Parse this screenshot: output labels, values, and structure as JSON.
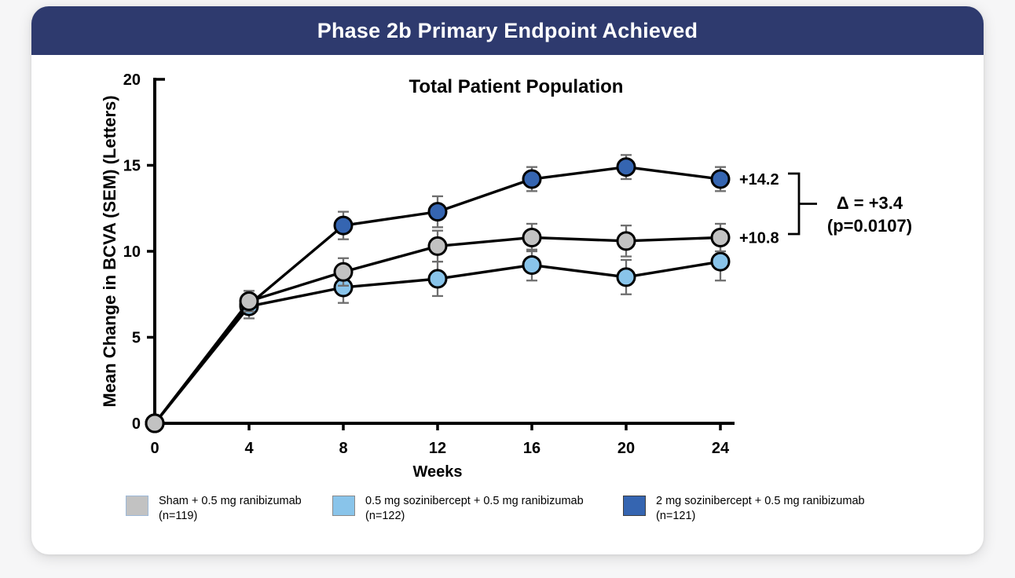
{
  "header": {
    "title": "Phase 2b Primary Endpoint Achieved",
    "bg_color": "#2e3a6e",
    "text_color": "#ffffff"
  },
  "chart_data": {
    "type": "line",
    "title": "Total Patient Population",
    "xlabel": "Weeks",
    "ylabel": "Mean Change in BCVA (SEM) (Letters)",
    "x": [
      0,
      4,
      8,
      12,
      16,
      20,
      24
    ],
    "xlim": [
      0,
      24.6
    ],
    "ylim": [
      0,
      20
    ],
    "yticks": [
      0,
      5,
      10,
      15,
      20
    ],
    "grid": false,
    "legend_position": "bottom",
    "axis_color": "#000000",
    "error_bar_color": "#6e6e6e",
    "series": [
      {
        "name": "Sham + 0.5 mg ranibizumab",
        "n": "(n=119)",
        "color": "#c2c2c2",
        "swatch_border": "#9db9d8",
        "values": [
          0,
          7.1,
          8.8,
          10.3,
          10.8,
          10.6,
          10.8
        ],
        "sem": [
          0,
          0.6,
          0.8,
          0.9,
          0.8,
          0.9,
          0.8
        ],
        "end_label": "+10.8"
      },
      {
        "name": "0.5 mg sozinibercept + 0.5 mg ranibizumab",
        "n": "(n=122)",
        "color": "#89c4ea",
        "swatch_border": "#8a8a8a",
        "values": [
          0,
          6.8,
          7.9,
          8.4,
          9.2,
          8.5,
          9.4
        ],
        "sem": [
          0,
          0.7,
          0.9,
          1.0,
          0.9,
          1.0,
          1.1
        ]
      },
      {
        "name": "2 mg sozinibercept + 0.5 mg ranibizumab",
        "n": "(n=121)",
        "color": "#3565b1",
        "swatch_border": "#3f3f3f",
        "values": [
          0,
          6.9,
          11.5,
          12.3,
          14.2,
          14.9,
          14.2
        ],
        "sem": [
          0,
          0.5,
          0.8,
          0.9,
          0.7,
          0.7,
          0.7
        ],
        "end_label": "+14.2"
      }
    ],
    "annotation": {
      "delta_label": "Δ = +3.4",
      "p_label": "(p=0.0107)"
    }
  }
}
